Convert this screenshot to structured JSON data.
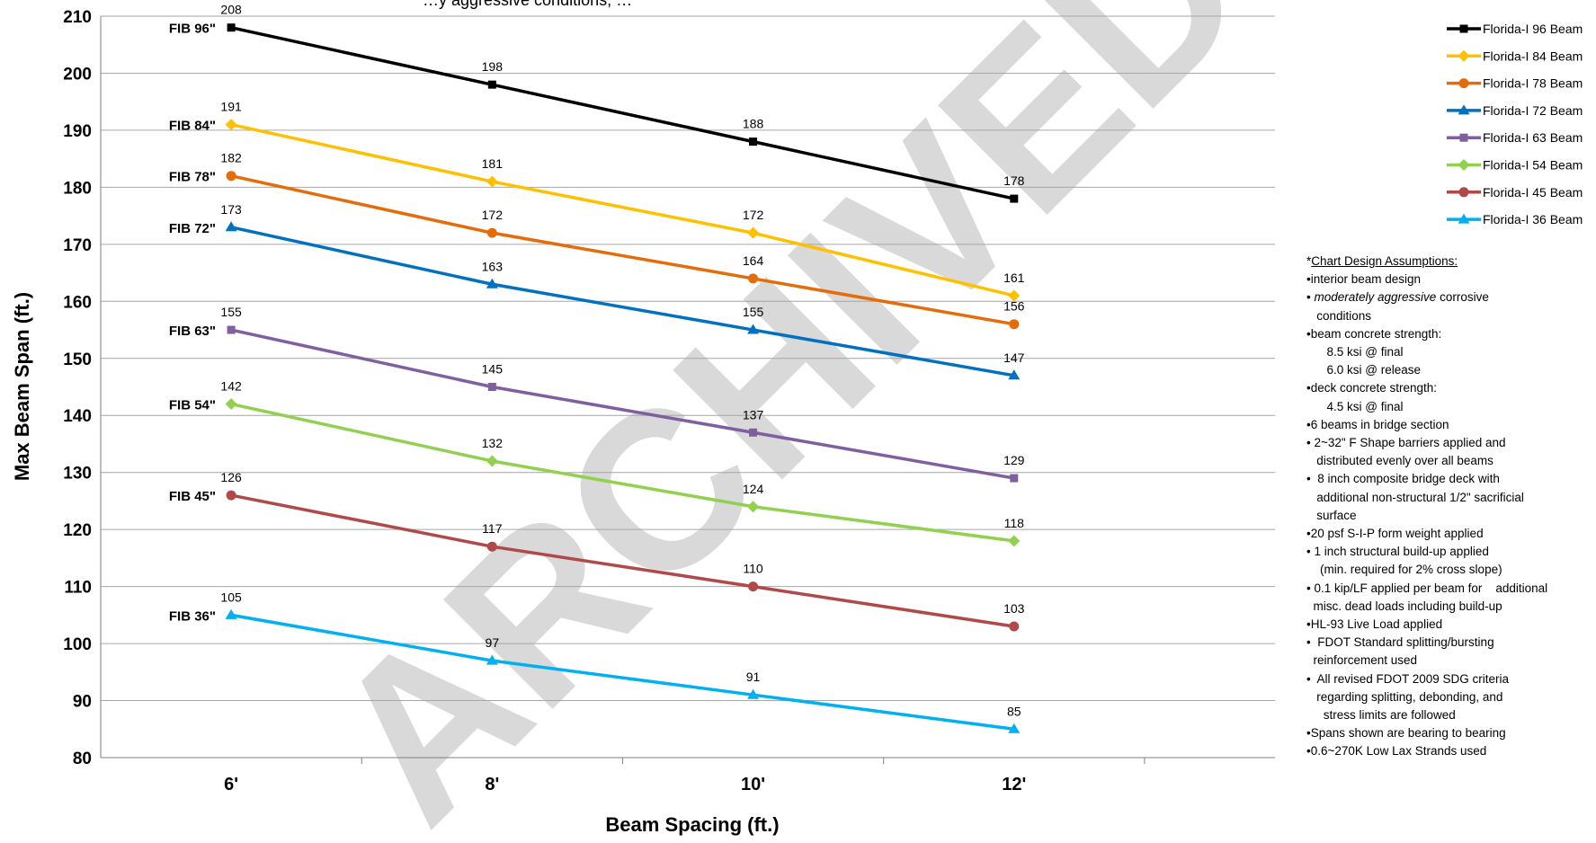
{
  "chart_data": {
    "type": "line",
    "title": "…y aggressive conditions, …",
    "xlabel": "Beam Spacing (ft.)",
    "ylabel": "Max Beam Span (ft.)",
    "categories": [
      "6'",
      "8'",
      "10'",
      "12'"
    ],
    "ylim": [
      80,
      210
    ],
    "yticks": [
      80,
      90,
      100,
      110,
      120,
      130,
      140,
      150,
      160,
      170,
      180,
      190,
      200,
      210
    ],
    "grid": "horizontal",
    "legend_position": "right",
    "series": [
      {
        "name": "Florida-I 96 Beam",
        "label": "FIB 96\"",
        "color": "#000000",
        "marker": "square",
        "values": [
          208,
          198,
          188,
          178
        ]
      },
      {
        "name": "Florida-I 84 Beam",
        "label": "FIB 84\"",
        "color": "#FFC000",
        "marker": "diamond",
        "values": [
          191,
          181,
          172,
          161
        ]
      },
      {
        "name": "Florida-I 78 Beam",
        "label": "FIB 78\"",
        "color": "#E46C0A",
        "marker": "circle",
        "values": [
          182,
          172,
          164,
          156
        ]
      },
      {
        "name": "Florida-I 72 Beam",
        "label": "FIB 72\"",
        "color": "#0070C0",
        "marker": "triangle",
        "values": [
          173,
          163,
          155,
          147
        ]
      },
      {
        "name": "Florida-I 63 Beam",
        "label": "FIB 63\"",
        "color": "#7F5F9F",
        "marker": "square",
        "values": [
          155,
          145,
          137,
          129
        ]
      },
      {
        "name": "Florida-I 54 Beam",
        "label": "FIB 54\"",
        "color": "#92D050",
        "marker": "diamond",
        "values": [
          142,
          132,
          124,
          118
        ]
      },
      {
        "name": "Florida-I 45 Beam",
        "label": "FIB 45\"",
        "color": "#B04A4A",
        "marker": "circle",
        "values": [
          126,
          117,
          110,
          103
        ]
      },
      {
        "name": "Florida-I 36 Beam",
        "label": "FIB 36\"",
        "color": "#00B0F0",
        "marker": "triangle",
        "values": [
          105,
          97,
          91,
          85
        ]
      }
    ],
    "watermark": "ARCHIVED",
    "watermark_color": "#d9d9d9",
    "gridline_color": "#a6a6a6"
  },
  "assumptions": {
    "heading_prefix": "*",
    "heading": "Chart Design Assumptions:",
    "lines": [
      {
        "text": "•interior beam design"
      },
      {
        "pre": "• ",
        "em": "moderately aggressive",
        "post": " corrosive"
      },
      {
        "text": "   conditions"
      },
      {
        "text": "•beam concrete strength:"
      },
      {
        "text": "      8.5 ksi @ final"
      },
      {
        "text": "      6.0 ksi @ release"
      },
      {
        "text": "•deck concrete strength:"
      },
      {
        "text": "      4.5 ksi @ final"
      },
      {
        "text": "•6 beams in bridge section"
      },
      {
        "text": "• 2~32\" F Shape barriers applied and"
      },
      {
        "text": "   distributed evenly over all beams"
      },
      {
        "text": "•  8 inch composite bridge deck with"
      },
      {
        "text": "   additional non-structural 1/2\" sacrificial"
      },
      {
        "text": "   surface"
      },
      {
        "text": "•20 psf S-I-P form weight applied"
      },
      {
        "text": "• 1 inch structural build-up applied"
      },
      {
        "text": "    (min. required for 2% cross slope)"
      },
      {
        "text": "• 0.1 kip/LF applied per beam for    additional"
      },
      {
        "text": "  misc. dead loads including build-up"
      },
      {
        "text": "•HL-93 Live Load applied"
      },
      {
        "text": "•  FDOT Standard splitting/bursting"
      },
      {
        "text": "  reinforcement used"
      },
      {
        "text": "•  All revised FDOT 2009 SDG criteria"
      },
      {
        "text": "   regarding splitting, debonding, and"
      },
      {
        "text": "     stress limits are followed"
      },
      {
        "text": "•Spans shown are bearing to bearing"
      },
      {
        "text": "•0.6~270K Low Lax Strands used"
      }
    ]
  }
}
